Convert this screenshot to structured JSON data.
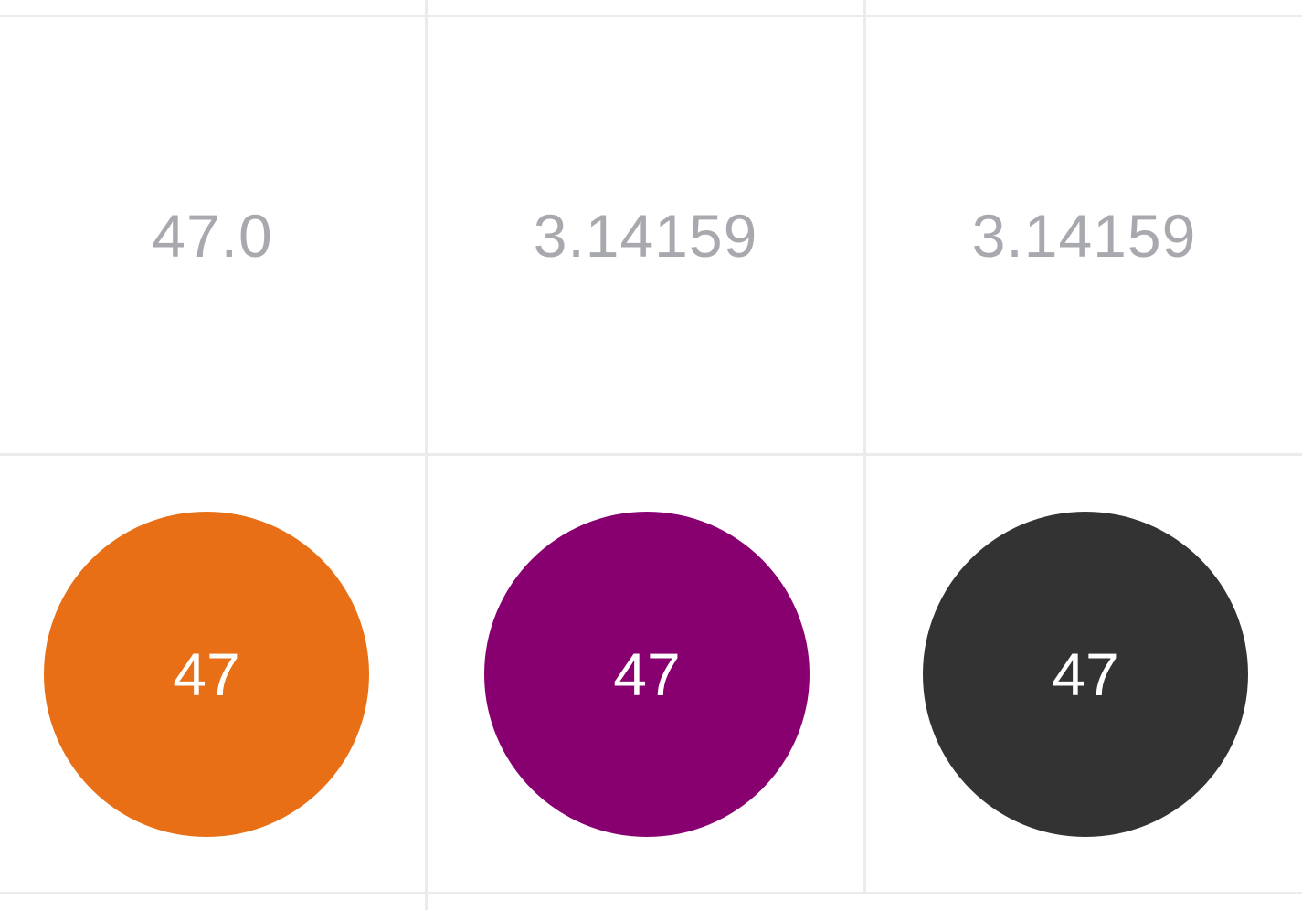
{
  "values_row": [
    {
      "text": "47.0"
    },
    {
      "text": "3.14159"
    },
    {
      "text": "3.14159"
    }
  ],
  "badges_row": [
    {
      "label": "47",
      "color": "#e86f15"
    },
    {
      "label": "47",
      "color": "#880070"
    },
    {
      "label": "47",
      "color": "#333333"
    }
  ],
  "grid_line_color": "#ebebee",
  "value_text_color": "#a8a9ae"
}
